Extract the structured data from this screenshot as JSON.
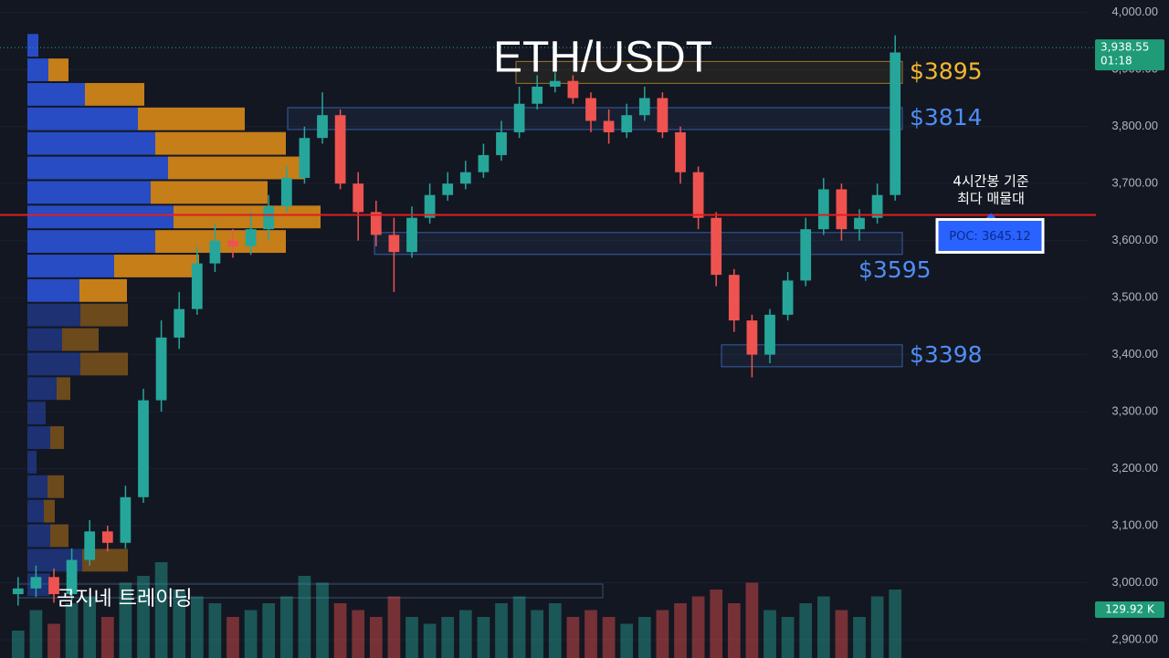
{
  "chart_data": {
    "type": "candlestick",
    "title": "ETH/USDT",
    "watermark": "곰지네 트레이딩",
    "open": [
      2980,
      2990,
      3010,
      2980,
      3040,
      3090,
      3070,
      3150,
      3320,
      3430,
      3480,
      3560,
      3600,
      3590,
      3620,
      3660,
      3710,
      3780,
      3820,
      3700,
      3650,
      3610,
      3580,
      3640,
      3680,
      3700,
      3720,
      3750,
      3790,
      3840,
      3870,
      3880,
      3850,
      3810,
      3790,
      3820,
      3850,
      3790,
      3720,
      3640,
      3540,
      3460,
      3400,
      3470,
      3530,
      3620,
      3690,
      3620,
      3640,
      3680
    ],
    "high": [
      3010,
      3030,
      3025,
      3060,
      3110,
      3100,
      3170,
      3340,
      3460,
      3510,
      3590,
      3630,
      3620,
      3650,
      3680,
      3730,
      3800,
      3860,
      3830,
      3720,
      3670,
      3640,
      3660,
      3700,
      3720,
      3740,
      3770,
      3810,
      3870,
      3890,
      3895,
      3890,
      3860,
      3830,
      3840,
      3870,
      3860,
      3800,
      3730,
      3650,
      3550,
      3470,
      3480,
      3545,
      3640,
      3710,
      3700,
      3655,
      3700,
      3960
    ],
    "low": [
      2960,
      2975,
      2965,
      2970,
      3030,
      3055,
      3060,
      3140,
      3300,
      3410,
      3470,
      3545,
      3570,
      3575,
      3600,
      3650,
      3700,
      3770,
      3690,
      3600,
      3590,
      3510,
      3570,
      3630,
      3670,
      3690,
      3710,
      3740,
      3780,
      3830,
      3860,
      3840,
      3790,
      3770,
      3780,
      3810,
      3780,
      3700,
      3620,
      3520,
      3440,
      3360,
      3385,
      3460,
      3520,
      3610,
      3600,
      3600,
      3630,
      3670
    ],
    "close": [
      2990,
      3010,
      2980,
      3040,
      3090,
      3070,
      3150,
      3320,
      3430,
      3480,
      3560,
      3600,
      3590,
      3620,
      3660,
      3710,
      3780,
      3820,
      3700,
      3650,
      3610,
      3580,
      3640,
      3680,
      3700,
      3720,
      3750,
      3790,
      3840,
      3870,
      3880,
      3850,
      3810,
      3790,
      3820,
      3850,
      3790,
      3720,
      3640,
      3540,
      3460,
      3400,
      3470,
      3530,
      3620,
      3690,
      3620,
      3640,
      3680,
      3930
    ],
    "volume": [
      20,
      35,
      25,
      40,
      45,
      30,
      55,
      60,
      70,
      50,
      45,
      40,
      30,
      35,
      40,
      45,
      60,
      55,
      40,
      35,
      30,
      45,
      30,
      25,
      30,
      35,
      30,
      40,
      45,
      35,
      40,
      30,
      35,
      30,
      25,
      30,
      35,
      40,
      45,
      50,
      40,
      55,
      35,
      30,
      40,
      45,
      35,
      30,
      45,
      50
    ],
    "volume_ylim": [
      0,
      100
    ],
    "volume_label": "129.92 K",
    "up_color": "#26a69a",
    "down_color": "#ef5350",
    "ylim": [
      2868,
      4022
    ],
    "yticks": [
      {
        "value": 2900,
        "label": "2,900.00"
      },
      {
        "value": 3000,
        "label": "3,000.00"
      },
      {
        "value": 3100,
        "label": "3,100.00"
      },
      {
        "value": 3200,
        "label": "3,200.00"
      },
      {
        "value": 3300,
        "label": "3,300.00"
      },
      {
        "value": 3400,
        "label": "3,400.00"
      },
      {
        "value": 3500,
        "label": "3,500.00"
      },
      {
        "value": 3600,
        "label": "3,600.00"
      },
      {
        "value": 3700,
        "label": "3,700.00"
      },
      {
        "value": 3800,
        "label": "3,800.00"
      },
      {
        "value": 3900,
        "label": "3,900.00"
      },
      {
        "value": 4000,
        "label": "4,000.00"
      }
    ],
    "grid": true,
    "last_price": {
      "value": 3938.55,
      "label": "3,938.55",
      "timer": "01:18"
    },
    "levels": {
      "values": [
        3895,
        3814,
        3595,
        3398
      ],
      "value_labels": [
        "$3895",
        "$3814",
        "$3595",
        "$3398"
      ],
      "colors": [
        "#f5b82e",
        "#4f8ef7",
        "#4f8ef7",
        "#4f8ef7"
      ]
    },
    "poc": {
      "value": 3645.12,
      "label": "POC: 3645.12",
      "note": [
        "4시간봉 기준",
        "최다 매물대"
      ]
    },
    "profile": {
      "bins": [
        2975,
        3018,
        3061,
        3104,
        3147,
        3190,
        3233,
        3276,
        3319,
        3362,
        3405,
        3448,
        3491,
        3534,
        3577,
        3620,
        3663,
        3706,
        3749,
        3792,
        3835,
        3878,
        3921,
        3964
      ],
      "buy": [
        25,
        60,
        25,
        18,
        22,
        10,
        25,
        20,
        32,
        58,
        38,
        58,
        57,
        95,
        140,
        160,
        135,
        154,
        140,
        121,
        63,
        23,
        12
      ],
      "sell": [
        0,
        50,
        20,
        12,
        18,
        0,
        15,
        0,
        15,
        52,
        40,
        52,
        52,
        93,
        143,
        161,
        128,
        149,
        143,
        117,
        65,
        22,
        0
      ],
      "xlim": [
        0,
        400
      ],
      "buy_color": "#2a52d6",
      "sell_color": "#d98a17",
      "value_area": [
        3491,
        3964
      ]
    }
  }
}
